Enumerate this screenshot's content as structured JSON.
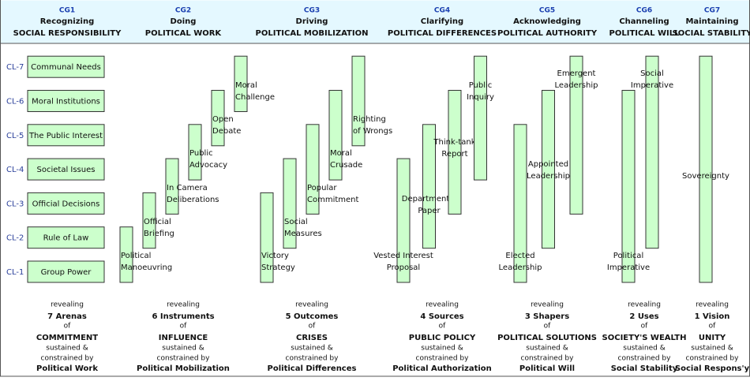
{
  "levels": [
    "CL-7",
    "CL-6",
    "CL-5",
    "CL-4",
    "CL-3",
    "CL-2",
    "CL-1"
  ],
  "columns": [
    {
      "code": "CG1",
      "verb": "Recognizing",
      "object": "SOCIAL RESPONSIBILITY",
      "items": [
        {
          "lines": [
            "Communal Needs"
          ]
        },
        {
          "lines": [
            "Moral Institutions"
          ]
        },
        {
          "lines": [
            "The Public Interest"
          ]
        },
        {
          "lines": [
            "Societal Issues"
          ]
        },
        {
          "lines": [
            "Official Decisions"
          ]
        },
        {
          "lines": [
            "Rule of Law"
          ]
        },
        {
          "lines": [
            "Group Power"
          ]
        }
      ],
      "footer": {
        "revealing": "revealing",
        "count": "7 Arenas",
        "of": "of",
        "noun": "COMMITMENT",
        "sustained": "sustained &",
        "constrained": "constrained by",
        "by": "Political Work"
      }
    },
    {
      "code": "CG2",
      "verb": "Doing",
      "object": "POLITICAL WORK",
      "items": [
        {
          "lines": [
            "Political",
            "Manoeuvring"
          ]
        },
        {
          "lines": [
            "Official",
            "Briefing"
          ]
        },
        {
          "lines": [
            "In Camera",
            "Deliberations"
          ]
        },
        {
          "lines": [
            "Public",
            "Advocacy"
          ]
        },
        {
          "lines": [
            "Open",
            "Debate"
          ]
        },
        {
          "lines": [
            "Moral",
            "Challenge"
          ]
        }
      ],
      "footer": {
        "revealing": "revealing",
        "count": "6 Instruments",
        "of": "of",
        "noun": "INFLUENCE",
        "sustained": "sustained &",
        "constrained": "constrained by",
        "by": "Political Mobilization"
      }
    },
    {
      "code": "CG3",
      "verb": "Driving",
      "object": "POLITICAL MOBILIZATION",
      "items": [
        {
          "lines": [
            "Victory",
            "Strategy"
          ]
        },
        {
          "lines": [
            "Social",
            "Measures"
          ]
        },
        {
          "lines": [
            "Popular",
            "Commitment"
          ]
        },
        {
          "lines": [
            "Moral",
            "Crusade"
          ]
        },
        {
          "lines": [
            "Righting",
            "of Wrongs"
          ]
        }
      ],
      "footer": {
        "revealing": "revealing",
        "count": "5 Outcomes",
        "of": "of",
        "noun": "CRISES",
        "sustained": "sustained &",
        "constrained": "constrained by",
        "by": "Political Differences"
      }
    },
    {
      "code": "CG4",
      "verb": "Clarifying",
      "object": "POLITICAL DIFFERENCES",
      "items": [
        {
          "lines": [
            "Vested Interest",
            "Proposal"
          ]
        },
        {
          "lines": [
            "Departmental",
            "Paper"
          ]
        },
        {
          "lines": [
            "Think-tank",
            "Report"
          ]
        },
        {
          "lines": [
            "Public",
            "Inquiry"
          ]
        }
      ],
      "footer": {
        "revealing": "revealing",
        "count": "4 Sources",
        "of": "of",
        "noun": "PUBLIC POLICY",
        "sustained": "sustained &",
        "constrained": "constrained by",
        "by": "Political Authorization"
      }
    },
    {
      "code": "CG5",
      "verb": "Acknowledging",
      "object": "POLITICAL AUTHORITY",
      "items": [
        {
          "lines": [
            "Elected",
            "Leadership"
          ]
        },
        {
          "lines": [
            "Appointed",
            "Leadership"
          ]
        },
        {
          "lines": [
            "Emergent",
            "Leadership"
          ]
        }
      ],
      "footer": {
        "revealing": "revealing",
        "count": "3 Shapers",
        "of": "of",
        "noun": "POLITICAL SOLUTIONS",
        "sustained": "sustained &",
        "constrained": "constrained by",
        "by": "Political Will"
      }
    },
    {
      "code": "CG6",
      "verb": "Channeling",
      "object": "POLITICAL WILL",
      "items": [
        {
          "lines": [
            "Political",
            "Imperative"
          ]
        },
        {
          "lines": [
            "Social",
            "Imperative"
          ]
        }
      ],
      "footer": {
        "revealing": "revealing",
        "count": "2 Uses",
        "of": "of",
        "noun": "SOCIETY'S WEALTH",
        "sustained": "sustained &",
        "constrained": "constrained by",
        "by": "Social Stability"
      }
    },
    {
      "code": "CG7",
      "verb": "Maintaining",
      "object": "SOCIAL STABILITY",
      "items": [
        {
          "lines": [
            "Sovereignty"
          ]
        }
      ],
      "footer": {
        "revealing": "revealing",
        "count": "1 Vision",
        "of": "of",
        "noun": "UNITY",
        "sustained": "sustained &",
        "constrained": "constrained by",
        "by": "Social Respons'y"
      }
    }
  ]
}
